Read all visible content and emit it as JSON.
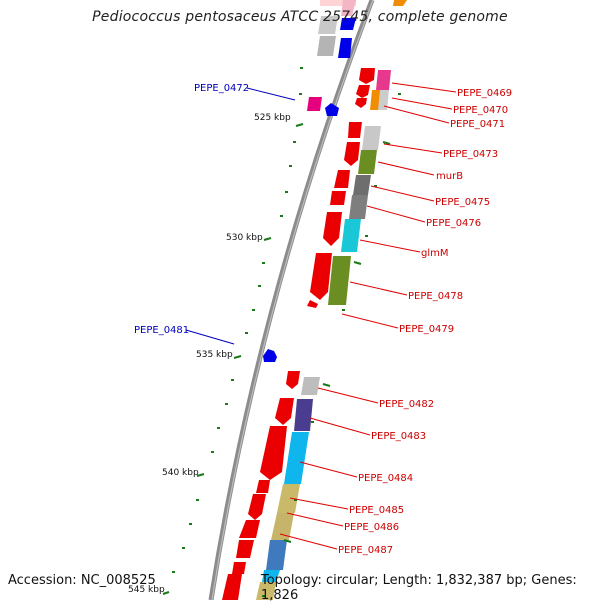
{
  "title": "Pediococcus pentosaceus ATCC 25745, complete genome",
  "footer": {
    "accession": "Accession: NC_008525",
    "stats": "Topology: circular; Length: 1,832,387 bp; Genes: 1,826"
  },
  "colors": {
    "backbone": "#808080",
    "forward_cds": "#e00000",
    "reverse_cds": "#0000e0",
    "tick": "#1a7a1a",
    "label_forward": "#cc0000",
    "label_reverse": "#0000bb"
  },
  "ticks": {
    "major_labels": [
      "525 kbp",
      "530 kbp",
      "535 kbp",
      "540 kbp",
      "545 kbp"
    ]
  },
  "gene_labels": {
    "forward_strand": [
      "PEPE_0469",
      "PEPE_0470",
      "PEPE_0471",
      "PEPE_0473",
      "murB",
      "PEPE_0475",
      "PEPE_0476",
      "glmM",
      "PEPE_0478",
      "PEPE_0479",
      "PEPE_0482",
      "PEPE_0483",
      "PEPE_0484",
      "PEPE_0485",
      "PEPE_0486",
      "PEPE_0487"
    ],
    "reverse_strand": [
      "PEPE_0472",
      "PEPE_0481"
    ]
  }
}
